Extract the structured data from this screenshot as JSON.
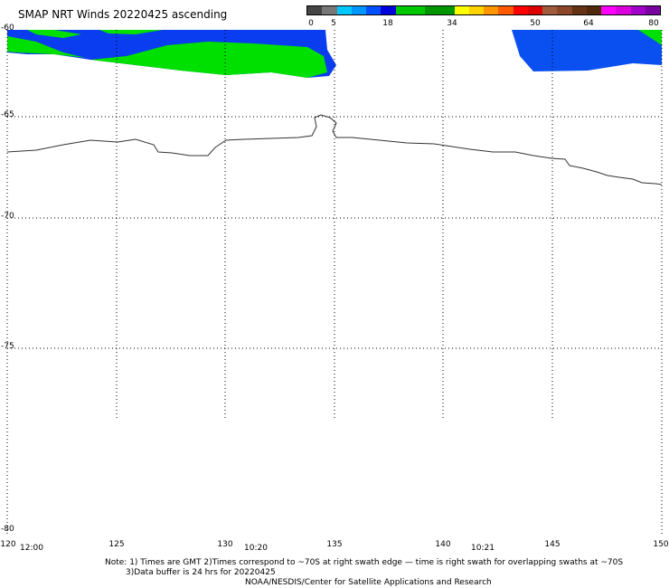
{
  "title": "SMAP NRT Winds 20220425 ascending",
  "colorbar": {
    "tick_labels": [
      "0",
      "5",
      "18",
      "34",
      "50",
      "64",
      "80"
    ],
    "colors": [
      "#444444",
      "#777777",
      "#00c8ff",
      "#0096ff",
      "#0050ff",
      "#0000dc",
      "#00c800",
      "#00c800",
      "#009600",
      "#009600",
      "#ffff00",
      "#ffd200",
      "#ff9600",
      "#ff5a00",
      "#ff0000",
      "#dc0000",
      "#a05a3c",
      "#8c4628",
      "#643214",
      "#50280a",
      "#ff00ff",
      "#dc00dc",
      "#a000c8",
      "#7800a0"
    ]
  },
  "lat_labels": [
    "-60",
    "-65",
    "-70",
    "-75",
    "-80"
  ],
  "lon_labels": [
    "120",
    "125",
    "130",
    "135",
    "140",
    "145",
    "150"
  ],
  "time_labels": [
    "12:00",
    "10:20",
    "10:21"
  ],
  "notes": {
    "line1": "Note: 1) Times are GMT 2)Times correspond to ~70S at right swath edge — time is right swath for overlapping swaths at ~70S",
    "line2": "3)Data buffer is 24 hrs for 20220425",
    "line3": "NOAA/NESDIS/Center for Satellite Applications and Research"
  }
}
